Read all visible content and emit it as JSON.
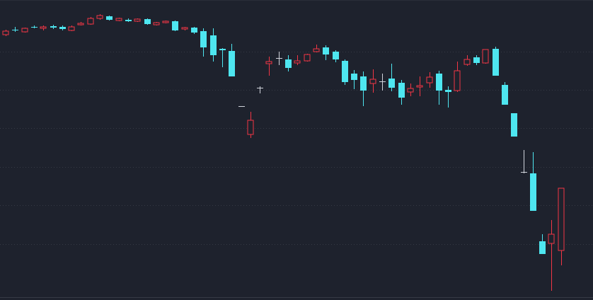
{
  "chart_data": {
    "type": "candlestick",
    "open": [
      375,
      382,
      379,
      386,
      384,
      387,
      386,
      381,
      389,
      390,
      398,
      401,
      395,
      396,
      394,
      397,
      389,
      392,
      394,
      383,
      385,
      380,
      374,
      355,
      352,
      274,
      234,
      300,
      334,
      342,
      340,
      335,
      338,
      351,
      357,
      351,
      338,
      320,
      316,
      306,
      309,
      313,
      307,
      294,
      301,
      307,
      320,
      297,
      296,
      333,
      343,
      335,
      355,
      304,
      264,
      181,
      179,
      83,
      80,
      70
    ],
    "high": [
      382,
      386,
      385,
      388,
      388,
      389,
      388,
      388,
      393,
      400,
      404,
      402,
      399,
      398,
      398,
      398,
      393,
      395,
      395,
      386,
      386,
      384,
      384,
      356,
      362,
      274,
      266,
      302,
      344,
      351,
      346,
      346,
      348,
      361,
      360,
      353,
      340,
      325,
      323,
      326,
      320,
      334,
      311,
      306,
      316,
      322,
      324,
      302,
      337,
      346,
      346,
      354,
      358,
      308,
      264,
      212,
      209,
      93,
      113,
      158
    ],
    "low": [
      373,
      379,
      378,
      384,
      381,
      383,
      381,
      380,
      388,
      389,
      396,
      395,
      394,
      393,
      393,
      389,
      388,
      391,
      380,
      381,
      376,
      344,
      337,
      329,
      316,
      274,
      229,
      292,
      317,
      332,
      323,
      332,
      337,
      350,
      339,
      336,
      304,
      298,
      274,
      293,
      296,
      295,
      276,
      288,
      288,
      300,
      276,
      272,
      294,
      331,
      332,
      334,
      317,
      276,
      231,
      179,
      126,
      65,
      13,
      49
    ],
    "close": [
      380,
      381,
      384,
      385,
      386,
      385,
      383,
      386,
      391,
      398,
      402,
      396,
      398,
      394,
      397,
      390,
      392,
      394,
      381,
      385,
      378,
      357,
      346,
      353,
      316,
      274,
      254,
      300,
      337,
      342,
      328,
      338,
      347,
      355,
      347,
      340,
      308,
      311,
      296,
      312,
      309,
      300,
      286,
      299,
      303,
      315,
      296,
      294,
      324,
      340,
      335,
      354,
      317,
      276,
      231,
      181,
      126,
      65,
      93,
      158
    ],
    "colors": {
      "up": "#f23645",
      "down": "#4ee6f0",
      "flat": "#d1d4dc"
    },
    "ylim": [
      0,
      424
    ],
    "yticks": [
      79,
      134,
      188,
      243,
      297,
      351
    ],
    "grid": true
  }
}
